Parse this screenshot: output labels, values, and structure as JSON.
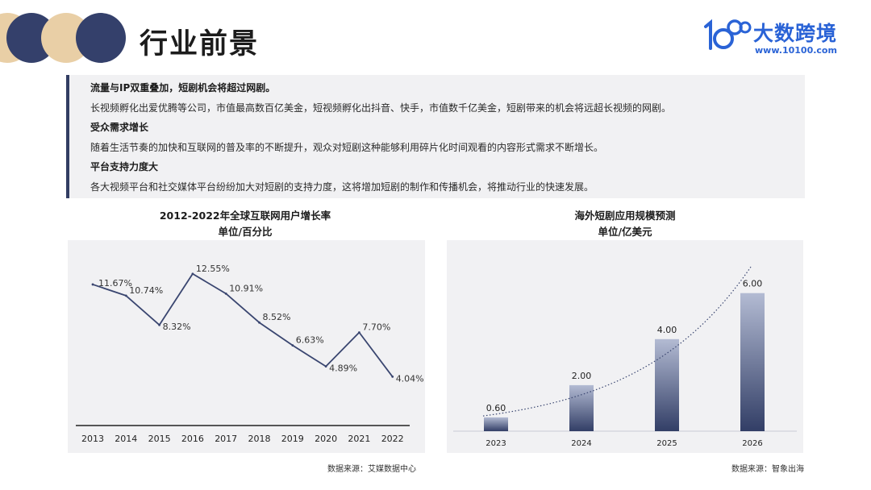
{
  "header": {
    "title": "行业前景",
    "logo_name": "大数跨境",
    "logo_url": "www.10100.com",
    "logo_mark": "10100-logo-icon",
    "colors": {
      "navy": "#34406b",
      "sand": "#e9cfa6",
      "brand_blue": "#2a63d6"
    }
  },
  "info": {
    "lines": [
      {
        "text": "流量与IP双重叠加，短剧机会将超过网剧。",
        "type": "head"
      },
      {
        "text": "长视频孵化出爱优腾等公司，市值最高数百亿美金，短视频孵化出抖音、快手，市值数千亿美金，短剧带来的机会将远超长视频的网剧。",
        "type": "body"
      },
      {
        "text": "受众需求增长",
        "type": "head"
      },
      {
        "text": "随着生活节奏的加快和互联网的普及率的不断提升，观众对短剧这种能够利用碎片化时间观看的内容形式需求不断增长。",
        "type": "body"
      },
      {
        "text": "平台支持力度大",
        "type": "head"
      },
      {
        "text": "各大视频平台和社交媒体平台纷纷加大对短剧的支持力度，这将增加短剧的制作和传播机会，将推动行业的快速发展。",
        "type": "body"
      }
    ]
  },
  "chart_data": [
    {
      "type": "line",
      "title": "2012-2022年全球互联网用户增长率",
      "subtitle": "单位/百分比",
      "categories": [
        "2013",
        "2014",
        "2015",
        "2016",
        "2017",
        "2018",
        "2019",
        "2020",
        "2021",
        "2022"
      ],
      "values": [
        11.67,
        10.74,
        8.32,
        12.55,
        10.91,
        8.52,
        6.63,
        4.89,
        7.7,
        4.04
      ],
      "data_labels": [
        "11.67%",
        "10.74%",
        "8.32%",
        "12.55%",
        "10.91%",
        "8.52%",
        "6.63%",
        "4.89%",
        "7.70%",
        "4.04%"
      ],
      "ylim": [
        0,
        14
      ],
      "grid": false,
      "color": "#3a4670",
      "source": "数据来源：艾媒数据中心"
    },
    {
      "type": "bar",
      "title": "海外短剧应用规模预测",
      "subtitle": "单位/亿美元",
      "categories": [
        "2023",
        "2024",
        "2025",
        "2026"
      ],
      "values": [
        0.6,
        2.0,
        4.0,
        6.0
      ],
      "data_labels": [
        "0.60",
        "2.00",
        "4.00",
        "6.00"
      ],
      "ylim": [
        0,
        7.6
      ],
      "grid": false,
      "trendline": "exponential-dotted",
      "colors": {
        "bar_top": "#b3bbd3",
        "bar_bottom": "#323e66"
      },
      "source": "数据来源：智象出海"
    }
  ]
}
